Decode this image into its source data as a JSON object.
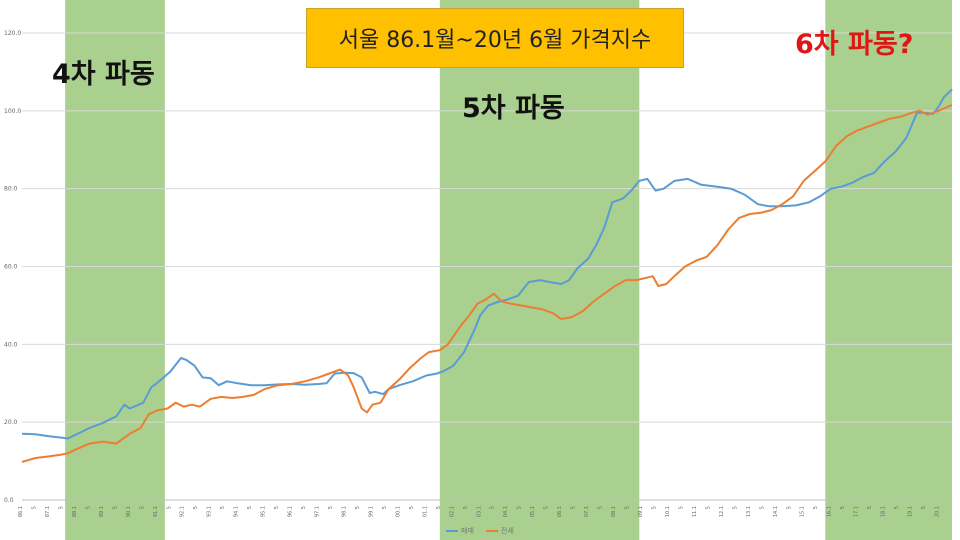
{
  "title": "서울 86.1월~20년 6월 가격지수",
  "annotations": {
    "wave4": "4차 파동",
    "wave5": "5차 파동",
    "wave6": "6차 파동?"
  },
  "colors": {
    "band": "#a9d08e",
    "sale": "#5b9bd5",
    "jeonse": "#ed7d31",
    "title_bg": "#ffc000",
    "wave6_text": "#e01515"
  },
  "chart_data": {
    "type": "line",
    "title": "서울 86.1월~20년 6월 가격지수",
    "xlabel": "",
    "ylabel": "",
    "ylim": [
      0,
      120
    ],
    "yticks": [
      0.0,
      20.0,
      40.0,
      60.0,
      80.0,
      100.0,
      120.0
    ],
    "ytick_labels": [
      "0.0",
      "20.0",
      "40.0",
      "60.0",
      "80.0",
      "100.0",
      "120.0"
    ],
    "xlim": [
      1986.0,
      2020.5
    ],
    "xtick_labels": [
      "86.1",
      "87.1",
      "88.1",
      "89.1",
      "90.1",
      "91.1",
      "92.1",
      "93.1",
      "94.1",
      "95.1",
      "96.1",
      "97.1",
      "98.1",
      "99.1",
      "00.1",
      "01.1",
      "02.1",
      "03.1",
      "04.1",
      "05.1",
      "06.1",
      "07.1",
      "08.1",
      "09.1",
      "10.1",
      "11.1",
      "12.1",
      "13.1",
      "14.1",
      "15.1",
      "16.1",
      "17.1",
      "18.1",
      "19.1",
      "20.1"
    ],
    "grid": true,
    "legend_position": "bottom",
    "shaded_periods": [
      {
        "label": "4차 파동",
        "start": 1987.6,
        "end": 1991.3
      },
      {
        "label": "5차 파동",
        "start": 2001.5,
        "end": 2008.9
      },
      {
        "label": "6차 파동?",
        "start": 2015.8,
        "end": 2020.5
      }
    ],
    "series": [
      {
        "name": "매매",
        "color": "#5b9bd5",
        "points": [
          [
            1986.0,
            17.0
          ],
          [
            1986.5,
            16.9
          ],
          [
            1987.0,
            16.4
          ],
          [
            1987.5,
            16.0
          ],
          [
            1987.7,
            15.8
          ],
          [
            1988.0,
            16.8
          ],
          [
            1988.5,
            18.5
          ],
          [
            1989.0,
            19.8
          ],
          [
            1989.5,
            21.5
          ],
          [
            1989.8,
            24.5
          ],
          [
            1990.0,
            23.5
          ],
          [
            1990.5,
            25.0
          ],
          [
            1990.8,
            29.0
          ],
          [
            1991.0,
            30.0
          ],
          [
            1991.5,
            33.0
          ],
          [
            1991.9,
            36.5
          ],
          [
            1992.1,
            36.0
          ],
          [
            1992.4,
            34.5
          ],
          [
            1992.7,
            31.5
          ],
          [
            1993.0,
            31.3
          ],
          [
            1993.3,
            29.5
          ],
          [
            1993.6,
            30.5
          ],
          [
            1994.0,
            30.0
          ],
          [
            1994.5,
            29.5
          ],
          [
            1995.0,
            29.5
          ],
          [
            1995.5,
            29.7
          ],
          [
            1996.0,
            29.8
          ],
          [
            1996.5,
            29.6
          ],
          [
            1997.0,
            29.8
          ],
          [
            1997.3,
            30.0
          ],
          [
            1997.6,
            32.5
          ],
          [
            1998.0,
            32.7
          ],
          [
            1998.3,
            32.6
          ],
          [
            1998.6,
            31.5
          ],
          [
            1998.9,
            27.5
          ],
          [
            1999.1,
            27.8
          ],
          [
            1999.4,
            27.2
          ],
          [
            1999.6,
            28.5
          ],
          [
            2000.0,
            29.5
          ],
          [
            2000.5,
            30.5
          ],
          [
            2001.0,
            32.0
          ],
          [
            2001.4,
            32.5
          ],
          [
            2001.6,
            33.0
          ],
          [
            2002.0,
            34.5
          ],
          [
            2002.4,
            38.0
          ],
          [
            2002.8,
            44.0
          ],
          [
            2003.0,
            47.5
          ],
          [
            2003.3,
            50.0
          ],
          [
            2003.7,
            51.0
          ],
          [
            2004.0,
            51.5
          ],
          [
            2004.4,
            52.5
          ],
          [
            2004.8,
            56.0
          ],
          [
            2005.2,
            56.5
          ],
          [
            2005.6,
            56.0
          ],
          [
            2006.0,
            55.5
          ],
          [
            2006.3,
            56.5
          ],
          [
            2006.6,
            59.5
          ],
          [
            2007.0,
            62.0
          ],
          [
            2007.3,
            65.5
          ],
          [
            2007.6,
            70.0
          ],
          [
            2007.9,
            76.5
          ],
          [
            2008.3,
            77.5
          ],
          [
            2008.6,
            79.5
          ],
          [
            2008.9,
            82.0
          ],
          [
            2009.2,
            82.5
          ],
          [
            2009.5,
            79.5
          ],
          [
            2009.8,
            80.0
          ],
          [
            2010.2,
            82.0
          ],
          [
            2010.7,
            82.5
          ],
          [
            2011.2,
            81.0
          ],
          [
            2011.8,
            80.5
          ],
          [
            2012.3,
            80.0
          ],
          [
            2012.8,
            78.5
          ],
          [
            2013.3,
            76.0
          ],
          [
            2013.7,
            75.5
          ],
          [
            2014.2,
            75.5
          ],
          [
            2014.7,
            75.7
          ],
          [
            2015.2,
            76.5
          ],
          [
            2015.6,
            78.0
          ],
          [
            2016.0,
            80.0
          ],
          [
            2016.4,
            80.5
          ],
          [
            2016.8,
            81.5
          ],
          [
            2017.2,
            83.0
          ],
          [
            2017.6,
            84.0
          ],
          [
            2018.0,
            87.0
          ],
          [
            2018.4,
            89.5
          ],
          [
            2018.8,
            93.0
          ],
          [
            2019.2,
            99.5
          ],
          [
            2019.5,
            99.5
          ],
          [
            2019.8,
            99.2
          ],
          [
            2020.0,
            101.0
          ],
          [
            2020.2,
            103.5
          ],
          [
            2020.5,
            105.5
          ]
        ]
      },
      {
        "name": "전세",
        "color": "#ed7d31",
        "points": [
          [
            1986.0,
            9.8
          ],
          [
            1986.5,
            10.8
          ],
          [
            1987.0,
            11.2
          ],
          [
            1987.4,
            11.6
          ],
          [
            1987.7,
            12.0
          ],
          [
            1988.0,
            13.0
          ],
          [
            1988.5,
            14.5
          ],
          [
            1989.0,
            15.0
          ],
          [
            1989.5,
            14.5
          ],
          [
            1989.8,
            16.0
          ],
          [
            1990.0,
            17.0
          ],
          [
            1990.4,
            18.5
          ],
          [
            1990.7,
            22.0
          ],
          [
            1991.0,
            23.0
          ],
          [
            1991.4,
            23.5
          ],
          [
            1991.7,
            25.0
          ],
          [
            1992.0,
            24.0
          ],
          [
            1992.3,
            24.5
          ],
          [
            1992.6,
            24.0
          ],
          [
            1993.0,
            26.0
          ],
          [
            1993.4,
            26.5
          ],
          [
            1993.8,
            26.2
          ],
          [
            1994.2,
            26.5
          ],
          [
            1994.6,
            27.0
          ],
          [
            1995.0,
            28.5
          ],
          [
            1995.5,
            29.5
          ],
          [
            1996.0,
            29.8
          ],
          [
            1996.5,
            30.5
          ],
          [
            1997.0,
            31.5
          ],
          [
            1997.4,
            32.5
          ],
          [
            1997.8,
            33.5
          ],
          [
            1998.1,
            32.0
          ],
          [
            1998.3,
            29.0
          ],
          [
            1998.6,
            23.5
          ],
          [
            1998.8,
            22.5
          ],
          [
            1999.0,
            24.5
          ],
          [
            1999.3,
            25.0
          ],
          [
            1999.6,
            28.5
          ],
          [
            2000.0,
            31.0
          ],
          [
            2000.4,
            34.0
          ],
          [
            2000.8,
            36.5
          ],
          [
            2001.1,
            38.0
          ],
          [
            2001.5,
            38.5
          ],
          [
            2001.8,
            40.0
          ],
          [
            2002.0,
            42.0
          ],
          [
            2002.3,
            45.0
          ],
          [
            2002.6,
            47.5
          ],
          [
            2002.9,
            50.5
          ],
          [
            2003.2,
            51.5
          ],
          [
            2003.5,
            53.0
          ],
          [
            2003.8,
            51.0
          ],
          [
            2004.1,
            50.5
          ],
          [
            2004.5,
            50.0
          ],
          [
            2004.9,
            49.5
          ],
          [
            2005.3,
            49.0
          ],
          [
            2005.7,
            48.0
          ],
          [
            2006.0,
            46.5
          ],
          [
            2006.4,
            47.0
          ],
          [
            2006.8,
            48.5
          ],
          [
            2007.2,
            51.0
          ],
          [
            2007.6,
            53.0
          ],
          [
            2008.0,
            55.0
          ],
          [
            2008.4,
            56.5
          ],
          [
            2008.8,
            56.5
          ],
          [
            2009.1,
            57.0
          ],
          [
            2009.4,
            57.5
          ],
          [
            2009.6,
            55.0
          ],
          [
            2009.9,
            55.5
          ],
          [
            2010.2,
            57.5
          ],
          [
            2010.6,
            60.0
          ],
          [
            2011.0,
            61.5
          ],
          [
            2011.4,
            62.5
          ],
          [
            2011.8,
            65.5
          ],
          [
            2012.2,
            69.5
          ],
          [
            2012.6,
            72.5
          ],
          [
            2013.0,
            73.5
          ],
          [
            2013.4,
            73.8
          ],
          [
            2013.8,
            74.5
          ],
          [
            2014.2,
            76.0
          ],
          [
            2014.6,
            78.0
          ],
          [
            2015.0,
            82.0
          ],
          [
            2015.4,
            84.5
          ],
          [
            2015.8,
            87.0
          ],
          [
            2016.2,
            91.0
          ],
          [
            2016.6,
            93.5
          ],
          [
            2017.0,
            95.0
          ],
          [
            2017.4,
            96.0
          ],
          [
            2017.8,
            97.0
          ],
          [
            2018.2,
            98.0
          ],
          [
            2018.6,
            98.5
          ],
          [
            2019.0,
            99.5
          ],
          [
            2019.3,
            100.0
          ],
          [
            2019.6,
            99.0
          ],
          [
            2020.0,
            100.0
          ],
          [
            2020.5,
            101.5
          ]
        ]
      }
    ]
  }
}
